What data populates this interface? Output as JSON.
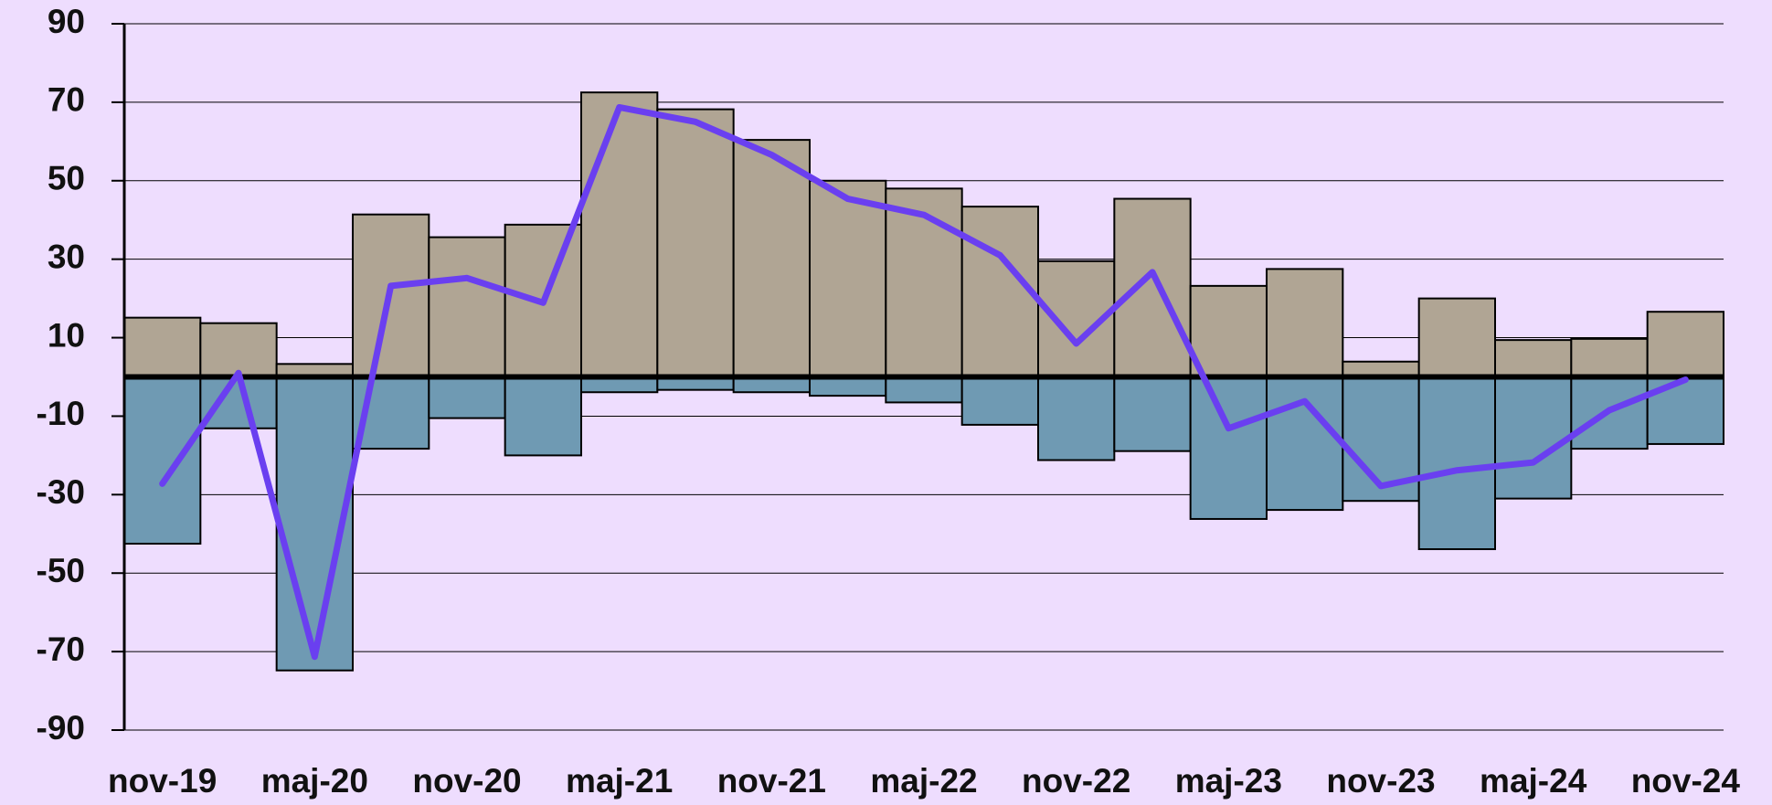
{
  "chart_data": {
    "type": "bar",
    "categories": [
      "nov-19",
      null,
      "maj-20",
      null,
      "nov-20",
      null,
      "maj-21",
      null,
      "nov-21",
      null,
      "maj-22",
      null,
      "nov-22",
      null,
      "maj-23",
      null,
      "nov-23",
      null,
      "maj-24",
      null,
      "nov-24"
    ],
    "series": [
      {
        "type": "bar",
        "color": "#b0a594",
        "values": [
          15.1,
          13.7,
          3.3,
          41.4,
          35.6,
          38.8,
          72.5,
          68.2,
          60.4,
          50,
          48,
          43.4,
          29.5,
          45.4,
          23.2,
          27.5,
          3.9,
          20,
          9.4,
          9.7,
          16.6
        ]
      },
      {
        "type": "bar",
        "color": "#6f9ab3",
        "values": [
          -42.5,
          -13.1,
          -74.8,
          -18.3,
          -10.5,
          -20,
          -3.9,
          -3.3,
          -3.9,
          -4.8,
          -6.5,
          -12.2,
          -21.2,
          -18.9,
          -36.2,
          -33.9,
          -31.6,
          -43.9,
          -31,
          -18.3,
          -17.1
        ]
      },
      {
        "type": "line",
        "color": "#6a3ff0",
        "values": [
          -27.2,
          1,
          -71.3,
          23.2,
          25.2,
          18.9,
          68.7,
          65,
          56.6,
          45.4,
          41.3,
          31,
          8.5,
          26.7,
          -13.1,
          -6.2,
          -27.8,
          -23.8,
          -21.8,
          -8.5,
          -0.7
        ]
      }
    ],
    "ylim": [
      -90,
      90
    ],
    "yticks": [
      -90,
      -70,
      -50,
      -30,
      -10,
      10,
      30,
      50,
      70,
      90
    ],
    "grid": true
  }
}
